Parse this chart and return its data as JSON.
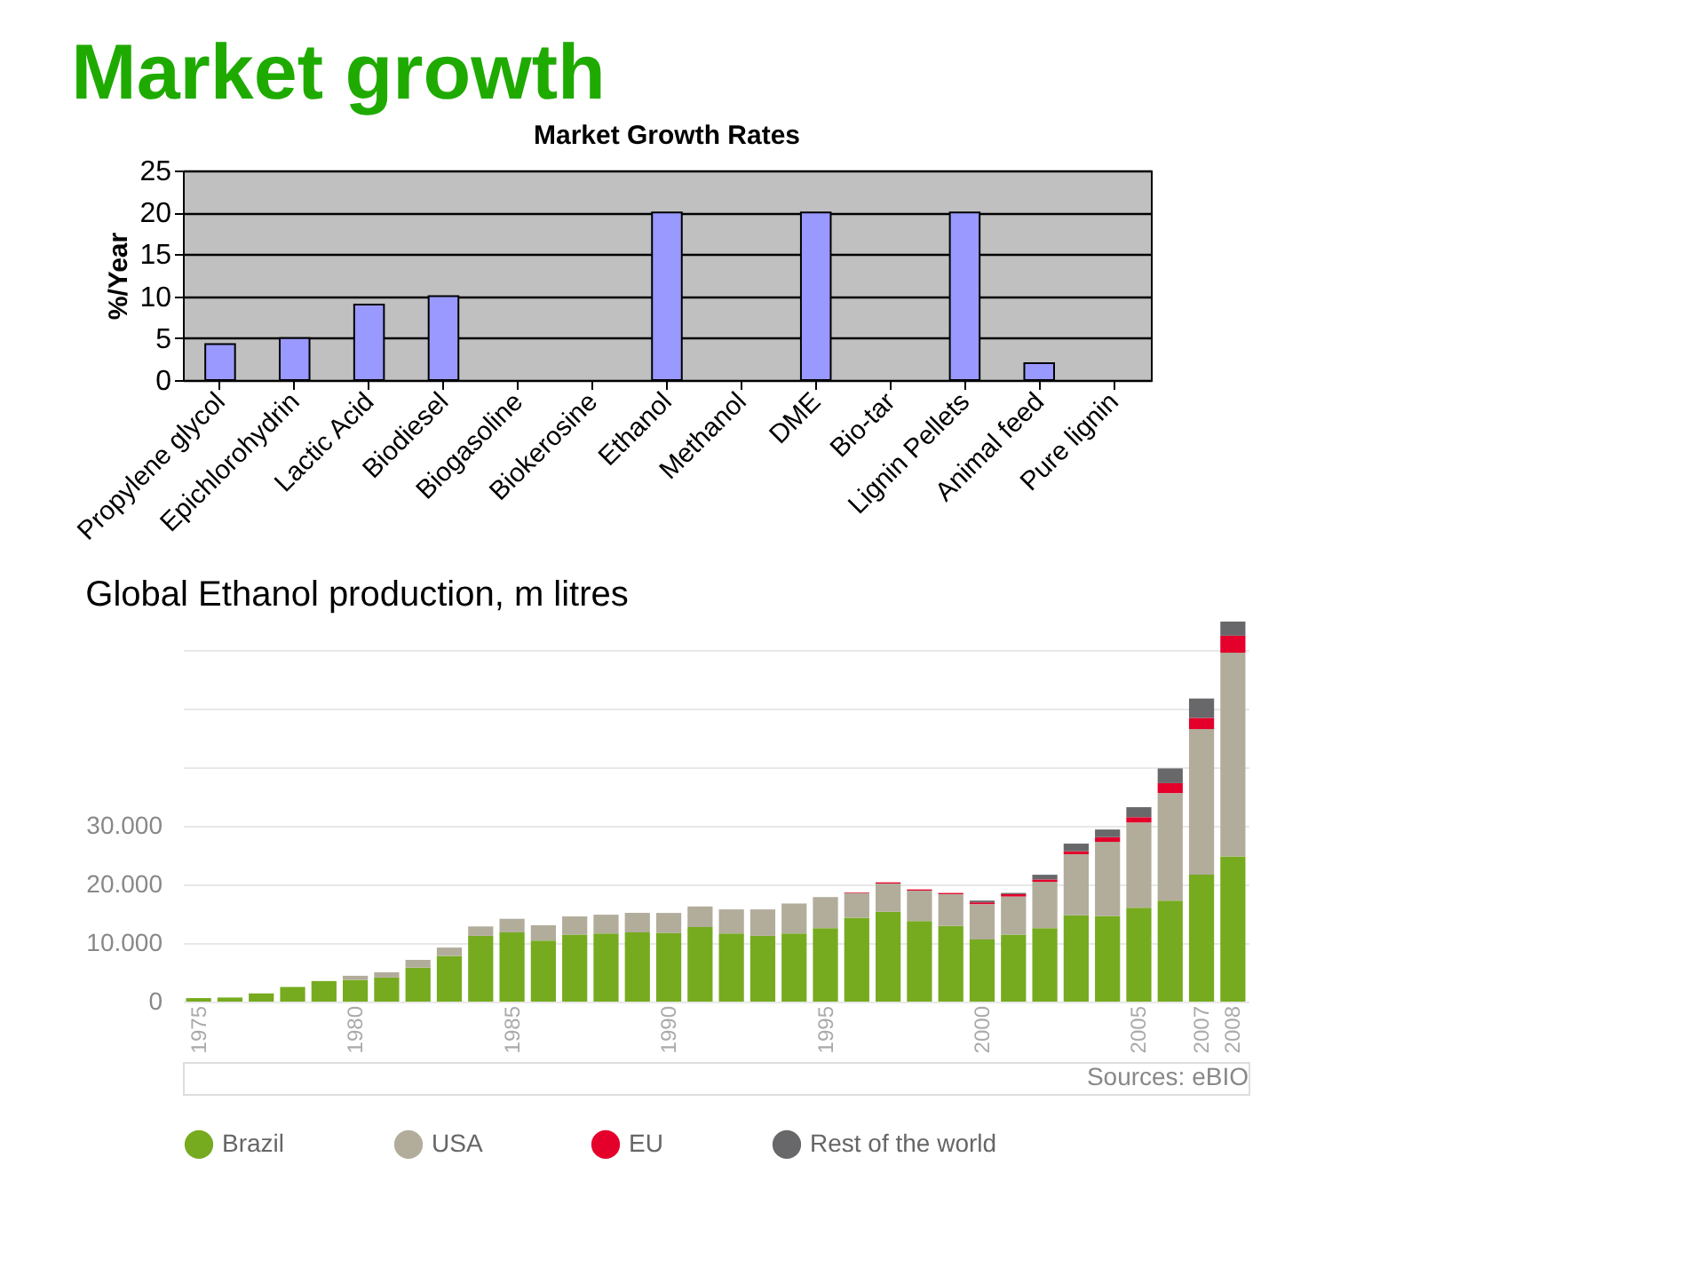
{
  "chart_data": [
    {
      "type": "bar",
      "title": "Market Growth Rates",
      "ylabel": "%/Year",
      "annotations": [
        "Market growth"
      ],
      "categories": [
        "Propylene glycol",
        "Epichlorohydrin",
        "Lactic Acid",
        "Biodiesel",
        "Biogasoline",
        "Biokerosine",
        "Ethanol",
        "Methanol",
        "DME",
        "Bio-tar",
        "Lignin Pellets",
        "Animal feed",
        "Pure lignin"
      ],
      "values": [
        4.3,
        5,
        9,
        10,
        0,
        0,
        20,
        0,
        20,
        0,
        20,
        2,
        0
      ],
      "color": "#9999ff",
      "ylim": [
        0,
        25
      ],
      "yticks": [
        0,
        5,
        10,
        15,
        20,
        25
      ],
      "grid": "y",
      "legend": false
    },
    {
      "type": "bar",
      "stacked": true,
      "title": "Global Ethanol production, m litres",
      "annotations": [
        "Sources: eBIO"
      ],
      "categories": [
        "1975",
        null,
        null,
        null,
        null,
        "1980",
        null,
        null,
        null,
        null,
        "1985",
        null,
        null,
        null,
        null,
        "1990",
        null,
        null,
        null,
        null,
        "1995",
        null,
        null,
        null,
        null,
        "2000",
        null,
        null,
        null,
        null,
        "2005",
        null,
        "2007",
        "2008"
      ],
      "series": [
        {
          "name": "Brazil",
          "color": "#76ab1f",
          "values": [
            600,
            700,
            1400,
            2500,
            3500,
            3700,
            4100,
            5800,
            7800,
            11200,
            11800,
            10400,
            11400,
            11600,
            11800,
            11700,
            12700,
            11600,
            11200,
            11600,
            12500,
            14300,
            15300,
            13700,
            12900,
            10600,
            11400,
            12500,
            14700,
            14600,
            16000,
            17200,
            21600,
            24700
          ]
        },
        {
          "name": "USA",
          "color": "#b2ac9b",
          "values": [
            0,
            0,
            0,
            0,
            0,
            700,
            900,
            1300,
            1400,
            1600,
            2300,
            2600,
            3100,
            3200,
            3300,
            3400,
            3500,
            4100,
            4500,
            5100,
            5300,
            4200,
            4800,
            5200,
            5400,
            6000,
            6500,
            7900,
            10400,
            12600,
            14500,
            18300,
            24800,
            34700
          ]
        },
        {
          "name": "EU",
          "color": "#e4002b",
          "values": [
            0,
            0,
            0,
            0,
            0,
            0,
            0,
            0,
            0,
            0,
            0,
            0,
            0,
            0,
            0,
            0,
            0,
            0,
            0,
            0,
            0,
            100,
            200,
            200,
            200,
            300,
            400,
            400,
            500,
            800,
            900,
            1700,
            1900,
            2900
          ]
        },
        {
          "name": "Rest of the world",
          "color": "#68686a",
          "values": [
            0,
            0,
            0,
            0,
            0,
            0,
            0,
            0,
            0,
            0,
            0,
            0,
            0,
            0,
            0,
            0,
            0,
            0,
            0,
            0,
            0,
            0,
            0,
            0,
            0,
            300,
            200,
            800,
            1300,
            1300,
            1700,
            2500,
            3300,
            2400
          ]
        }
      ],
      "ylim": [
        0,
        65000
      ],
      "yticks": [
        0,
        {
          "value": 10000,
          "label": "10.000"
        },
        {
          "value": 20000,
          "label": "20.000"
        },
        {
          "value": 30000,
          "label": "30.000"
        },
        {
          "value": 40000,
          "label": null
        },
        {
          "value": 50000,
          "label": null
        },
        {
          "value": 60000,
          "label": null
        }
      ],
      "grid": "y",
      "legend": "bottom"
    }
  ]
}
